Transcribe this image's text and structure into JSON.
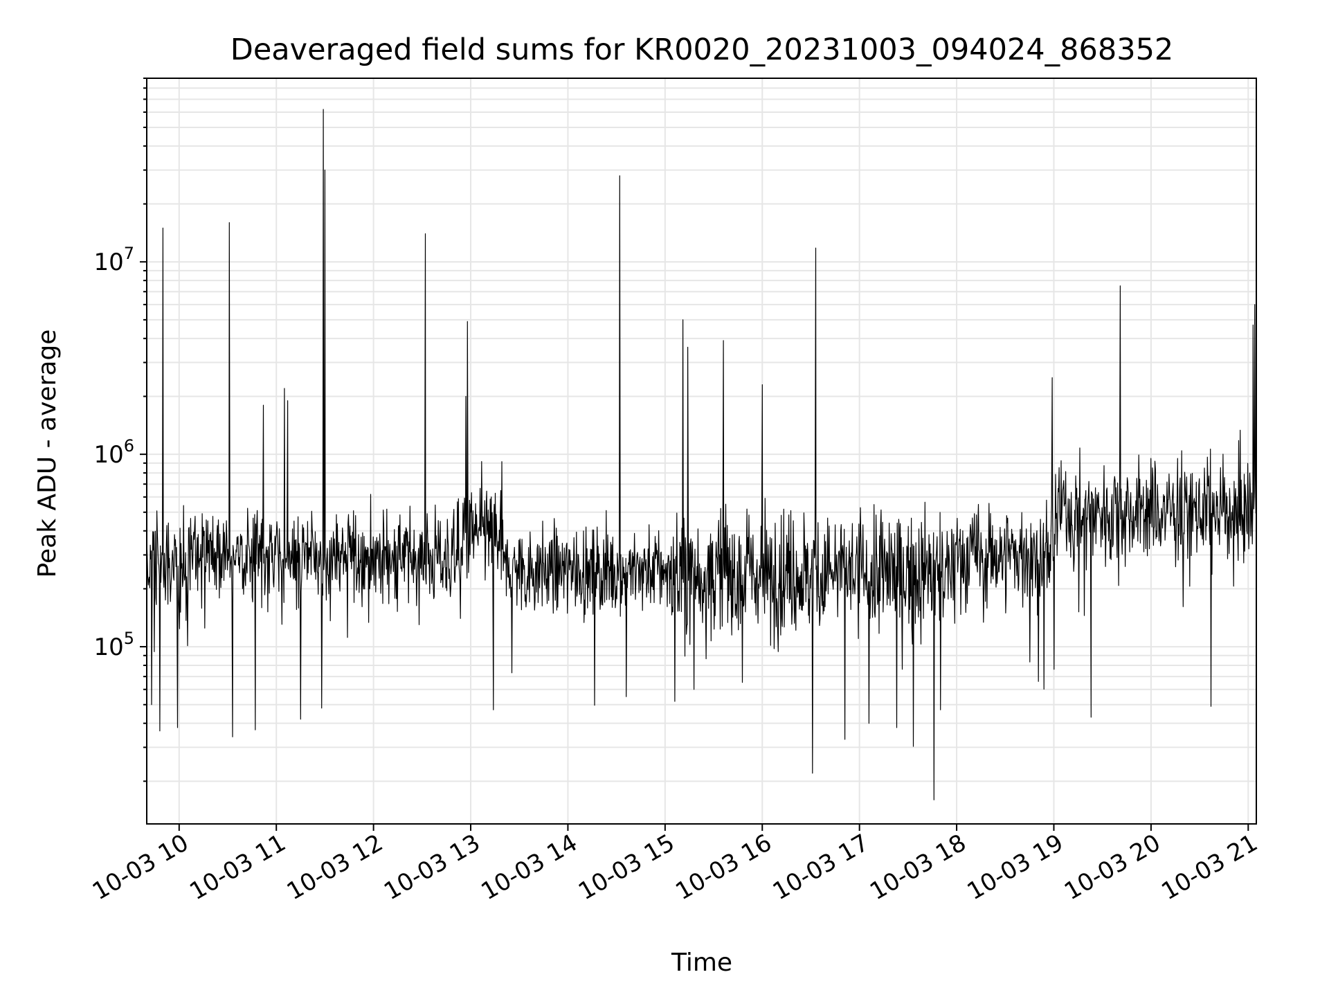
{
  "chart_data": {
    "type": "line",
    "title": "Deaveraged field sums for KR0020_20231003_094024_868352",
    "xlabel": "Time",
    "ylabel": "Peak ADU - average",
    "yscale": "log",
    "ylim": [
      12000,
      90000000
    ],
    "xlim": [
      "10-03 09:40",
      "10-03 21:05"
    ],
    "grid": true,
    "x_ticks": [
      "10-03 10",
      "10-03 11",
      "10-03 12",
      "10-03 13",
      "10-03 14",
      "10-03 15",
      "10-03 16",
      "10-03 17",
      "10-03 18",
      "10-03 19",
      "10-03 20",
      "10-03 21"
    ],
    "y_ticks": [
      {
        "base": "10",
        "exp": "5",
        "value": 100000
      },
      {
        "base": "10",
        "exp": "6",
        "value": 1000000
      },
      {
        "base": "10",
        "exp": "7",
        "value": 10000000
      }
    ],
    "series": [
      {
        "color": "#000000",
        "segments": [
          {
            "start": "10-03 09:40",
            "end": "10-03 10:05",
            "median": 250000,
            "spread": 0.55
          },
          {
            "start": "10-03 10:05",
            "end": "10-03 12:55",
            "median": 290000,
            "spread": 0.45
          },
          {
            "start": "10-03 12:55",
            "end": "10-03 13:20",
            "median": 380000,
            "spread": 0.5
          },
          {
            "start": "10-03 13:20",
            "end": "10-03 15:00",
            "median": 250000,
            "spread": 0.42
          },
          {
            "start": "10-03 15:00",
            "end": "10-03 18:00",
            "median": 240000,
            "spread": 0.62
          },
          {
            "start": "10-03 18:00",
            "end": "10-03 19:00",
            "median": 300000,
            "spread": 0.5
          },
          {
            "start": "10-03 19:00",
            "end": "10-03 21:05",
            "median": 500000,
            "spread": 0.5
          }
        ],
        "spikes": [
          {
            "x": "10-03 09:50",
            "y": 15000000
          },
          {
            "x": "10-03 10:31",
            "y": 16000000
          },
          {
            "x": "10-03 10:52",
            "y": 1800000
          },
          {
            "x": "10-03 11:05",
            "y": 2200000
          },
          {
            "x": "10-03 11:07",
            "y": 1900000
          },
          {
            "x": "10-03 11:29",
            "y": 62000000
          },
          {
            "x": "10-03 11:30",
            "y": 30000000
          },
          {
            "x": "10-03 12:32",
            "y": 14000000
          },
          {
            "x": "10-03 12:58",
            "y": 4900000
          },
          {
            "x": "10-03 12:57",
            "y": 2000000
          },
          {
            "x": "10-03 14:32",
            "y": 28000000
          },
          {
            "x": "10-03 15:11",
            "y": 5000000
          },
          {
            "x": "10-03 15:14",
            "y": 3600000
          },
          {
            "x": "10-03 15:36",
            "y": 3900000
          },
          {
            "x": "10-03 16:00",
            "y": 2300000
          },
          {
            "x": "10-03 16:33",
            "y": 11800000
          },
          {
            "x": "10-03 18:59",
            "y": 2500000
          },
          {
            "x": "10-03 19:41",
            "y": 7500000
          },
          {
            "x": "10-03 21:04",
            "y": 6000000
          },
          {
            "x": "10-03 21:03",
            "y": 4700000
          }
        ],
        "dips": [
          {
            "x": "10-03 09:43",
            "y": 50000
          },
          {
            "x": "10-03 09:59",
            "y": 38000
          },
          {
            "x": "10-03 10:33",
            "y": 34000
          },
          {
            "x": "10-03 10:47",
            "y": 37000
          },
          {
            "x": "10-03 11:15",
            "y": 42000
          },
          {
            "x": "10-03 11:28",
            "y": 48000
          },
          {
            "x": "10-03 13:14",
            "y": 47000
          },
          {
            "x": "10-03 14:36",
            "y": 55000
          },
          {
            "x": "10-03 15:06",
            "y": 52000
          },
          {
            "x": "10-03 16:31",
            "y": 22000
          },
          {
            "x": "10-03 16:51",
            "y": 33000
          },
          {
            "x": "10-03 17:23",
            "y": 38000
          },
          {
            "x": "10-03 17:46",
            "y": 16000
          },
          {
            "x": "10-03 17:50",
            "y": 47000
          },
          {
            "x": "10-03 19:23",
            "y": 43000
          },
          {
            "x": "10-03 20:37",
            "y": 49000
          }
        ]
      }
    ]
  }
}
